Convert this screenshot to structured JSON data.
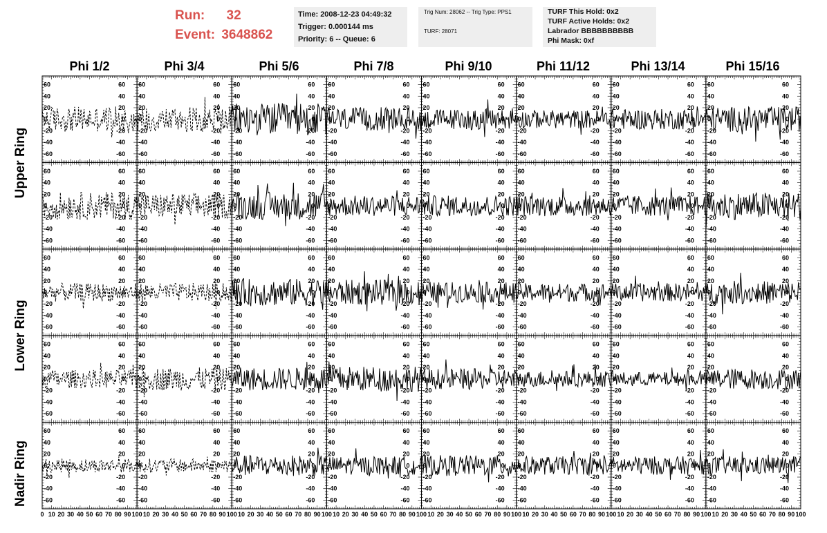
{
  "header": {
    "run_label": "Run:",
    "run_value": "32",
    "event_label": "Event:",
    "event_value": "3648862"
  },
  "info_boxes": [
    {
      "lines": [
        "Time: 2008-12-23 04:49:32",
        "Trigger: 0.000144 ms",
        "Priority: 6 -- Queue: 6"
      ]
    },
    {
      "lines": [
        "Trig Num: 28062 -- Trig Type: PPS1",
        "",
        "TURF: 28071"
      ]
    },
    {
      "lines": [
        "TURF This Hold: 0x2",
        "TURF Active Holds: 0x2",
        "Labrador BBBBBBBBBB",
        "Phi Mask: 0xf"
      ]
    }
  ],
  "columns": [
    "Phi 1/2",
    "Phi 3/4",
    "Phi 5/6",
    "Phi 7/8",
    "Phi 9/10",
    "Phi 11/12",
    "Phi 13/14",
    "Phi 15/16"
  ],
  "rings": [
    "Upper Ring",
    "Lower Ring",
    "Nadir Ring"
  ],
  "colors": {
    "header_red": "#d9534f",
    "trace": "#000000",
    "info_bg": "#eeeeee"
  },
  "chart_data": {
    "type": "line",
    "description_rows": 5,
    "description_cols": 8,
    "ylim": [
      -75,
      75
    ],
    "y_ticks": [
      60,
      40,
      20,
      0,
      -20,
      -40,
      -60
    ],
    "y_tick_labels": [
      "60",
      "40",
      "20",
      "0",
      "-20",
      "-40",
      "-60"
    ],
    "xlim": [
      0,
      100
    ],
    "x_ticks": [
      0,
      10,
      20,
      30,
      40,
      50,
      60,
      70,
      80,
      90,
      100
    ],
    "x_tick_labels": [
      "0",
      "10",
      "20",
      "30",
      "40",
      "50",
      "60",
      "70",
      "80",
      "90",
      "100"
    ],
    "panel_styles": [
      "dashed",
      "dashed",
      "solid",
      "solid",
      "solid",
      "solid",
      "solid",
      "solid"
    ],
    "amplitude_approx": [
      [
        22,
        22,
        28,
        20,
        18,
        16,
        18,
        22
      ],
      [
        24,
        22,
        24,
        18,
        18,
        18,
        18,
        24
      ],
      [
        16,
        16,
        24,
        22,
        18,
        16,
        16,
        20
      ],
      [
        16,
        20,
        20,
        22,
        18,
        14,
        12,
        18
      ],
      [
        12,
        12,
        18,
        16,
        18,
        16,
        16,
        16
      ]
    ]
  }
}
